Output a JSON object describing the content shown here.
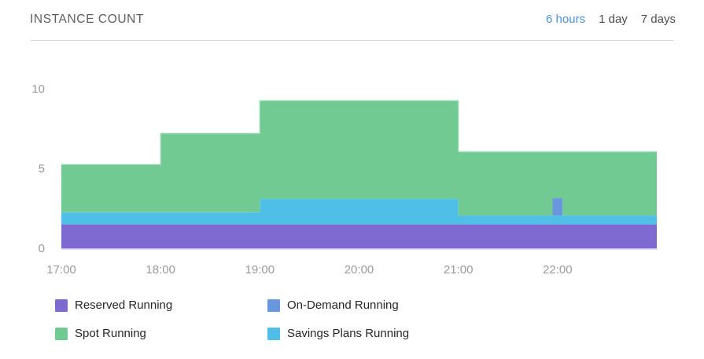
{
  "header": {
    "title": "INSTANCE COUNT",
    "ranges": [
      {
        "label": "6 hours",
        "active": true
      },
      {
        "label": "1 day",
        "active": false
      },
      {
        "label": "7 days",
        "active": false
      }
    ]
  },
  "colors": {
    "accent": "#4a90e2",
    "title_text": "#5d5e60",
    "axis_text": "#9a9a9a",
    "divider": "#dcdcdc",
    "baseline": "#cbbfed",
    "total_top_edge": "#9edcba"
  },
  "chart_data": {
    "type": "area",
    "subtype": "stacked-step",
    "title": "INSTANCE COUNT",
    "x_unit": "time-of-day",
    "x_range": [
      17,
      23
    ],
    "ylim": [
      0,
      10.9
    ],
    "grid": false,
    "legend_position": "bottom",
    "x_ticks": [
      {
        "t": 17,
        "label": "17:00"
      },
      {
        "t": 18,
        "label": "18:00"
      },
      {
        "t": 19,
        "label": "19:00"
      },
      {
        "t": 20,
        "label": "20:00"
      },
      {
        "t": 21,
        "label": "21:00"
      },
      {
        "t": 22,
        "label": "22:00"
      }
    ],
    "y_ticks": [
      {
        "v": 0,
        "label": "0"
      },
      {
        "v": 5,
        "label": "5"
      },
      {
        "v": 10,
        "label": "10"
      }
    ],
    "step_times": [
      17,
      18,
      19,
      21,
      21.95,
      22.05
    ],
    "series": [
      {
        "name": "Reserved Running",
        "color": "#7e6ad0",
        "values": [
          1.5,
          1.5,
          1.5,
          1.5,
          1.5,
          1.5
        ]
      },
      {
        "name": "Savings Plans Running",
        "color": "#50bfe8",
        "values": [
          0.75,
          0.75,
          1.6,
          0.55,
          0.55,
          0.55
        ]
      },
      {
        "name": "On-Demand Running",
        "color": "#6897de",
        "values": [
          0,
          0,
          0,
          0,
          1.1,
          0
        ]
      },
      {
        "name": "Spot Running",
        "color": "#72ca93",
        "values": [
          3.0,
          4.95,
          6.15,
          4.0,
          2.9,
          4.0
        ]
      }
    ],
    "stacked_totals": [
      5.25,
      7.2,
      9.25,
      6.05,
      6.05,
      6.05
    ]
  },
  "legend": {
    "items": [
      {
        "label": "Reserved Running",
        "color": "#7e6ad0"
      },
      {
        "label": "On-Demand Running",
        "color": "#6897de"
      },
      {
        "label": "Spot Running",
        "color": "#72ca93"
      },
      {
        "label": "Savings Plans Running",
        "color": "#50bfe8"
      }
    ]
  }
}
